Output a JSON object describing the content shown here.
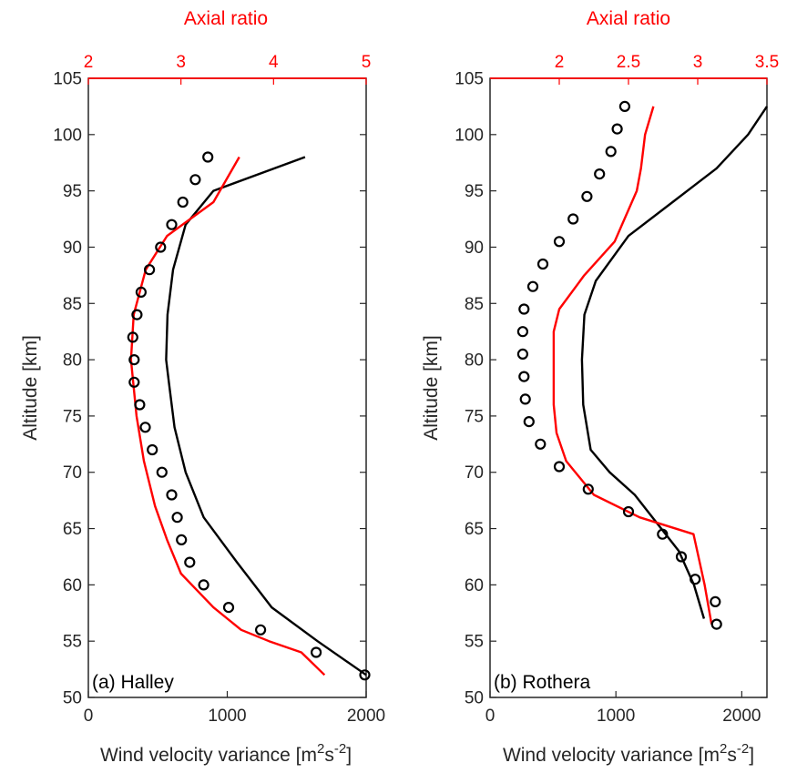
{
  "chart_data": [
    {
      "type": "line",
      "panel_label": "(a) Halley",
      "xlabel_main": "Wind velocity variance [m",
      "xlabel_sup1": "2",
      "xlabel_mid": "s",
      "xlabel_sup2": "-2",
      "xlabel_end": "]",
      "xlabel_secondary": "Axial ratio",
      "ylabel": "Altitude [km]",
      "xlim": [
        0,
        2000
      ],
      "x2lim": [
        2,
        5
      ],
      "ylim": [
        50,
        105
      ],
      "xticks": [
        0,
        1000,
        2000
      ],
      "x2ticks": [
        2,
        3,
        4,
        5
      ],
      "yticks": [
        50,
        55,
        60,
        65,
        70,
        75,
        80,
        85,
        90,
        95,
        100,
        105
      ],
      "series": [
        {
          "axis": "bottom",
          "style": "line",
          "color": "#000000",
          "points": [
            [
              2000,
              52
            ],
            [
              1650,
              55
            ],
            [
              1320,
              58
            ],
            [
              1070,
              62
            ],
            [
              830,
              66
            ],
            [
              700,
              70
            ],
            [
              620,
              74
            ],
            [
              580,
              78
            ],
            [
              560,
              80
            ],
            [
              570,
              84
            ],
            [
              610,
              88
            ],
            [
              700,
              92
            ],
            [
              900,
              95
            ],
            [
              1560,
              98
            ]
          ]
        },
        {
          "axis": "top",
          "style": "line",
          "color": "#ff0000",
          "points": [
            [
              4.55,
              52
            ],
            [
              4.3,
              54
            ],
            [
              3.95,
              55
            ],
            [
              3.65,
              56
            ],
            [
              3.35,
              58
            ],
            [
              3.0,
              61
            ],
            [
              2.85,
              64
            ],
            [
              2.72,
              67
            ],
            [
              2.6,
              71
            ],
            [
              2.52,
              75
            ],
            [
              2.46,
              80
            ],
            [
              2.49,
              84
            ],
            [
              2.62,
              88
            ],
            [
              2.85,
              91
            ],
            [
              3.35,
              94
            ],
            [
              3.63,
              98
            ]
          ]
        },
        {
          "axis": "bottom",
          "style": "markers",
          "color": "#000000",
          "points": [
            [
              860,
              98
            ],
            [
              770,
              96
            ],
            [
              680,
              94
            ],
            [
              600,
              92
            ],
            [
              520,
              90
            ],
            [
              440,
              88
            ],
            [
              380,
              86
            ],
            [
              350,
              84
            ],
            [
              320,
              82
            ],
            [
              330,
              80
            ],
            [
              330,
              78
            ],
            [
              370,
              76
            ],
            [
              410,
              74
            ],
            [
              460,
              72
            ],
            [
              530,
              70
            ],
            [
              600,
              68
            ],
            [
              640,
              66
            ],
            [
              670,
              64
            ],
            [
              730,
              62
            ],
            [
              830,
              60
            ],
            [
              1010,
              58
            ],
            [
              1240,
              56
            ],
            [
              1640,
              54
            ],
            [
              1990,
              52
            ]
          ]
        }
      ]
    },
    {
      "type": "line",
      "panel_label": "(b) Rothera",
      "xlabel_main": "Wind velocity variance [m",
      "xlabel_sup1": "2",
      "xlabel_mid": "s",
      "xlabel_sup2": "-2",
      "xlabel_end": "]",
      "xlabel_secondary": "Axial ratio",
      "ylabel": "Altitude [km]",
      "xlim": [
        0,
        2200
      ],
      "x2lim": [
        1.5,
        3.5
      ],
      "ylim": [
        50,
        105
      ],
      "xticks": [
        0,
        1000,
        2000
      ],
      "x2ticks": [
        2,
        2.5,
        3,
        3.5
      ],
      "yticks": [
        50,
        55,
        60,
        65,
        70,
        75,
        80,
        85,
        90,
        95,
        100,
        105
      ],
      "series": [
        {
          "axis": "bottom",
          "style": "line",
          "color": "#000000",
          "points": [
            [
              1700,
              57
            ],
            [
              1620,
              60
            ],
            [
              1500,
              63
            ],
            [
              1360,
              65
            ],
            [
              1150,
              68
            ],
            [
              950,
              70
            ],
            [
              800,
              72
            ],
            [
              740,
              76
            ],
            [
              730,
              80
            ],
            [
              750,
              84
            ],
            [
              840,
              87
            ],
            [
              1100,
              91
            ],
            [
              1450,
              94
            ],
            [
              1800,
              97
            ],
            [
              2050,
              100
            ],
            [
              2200,
              102.5
            ]
          ]
        },
        {
          "axis": "top",
          "style": "line",
          "color": "#ff0000",
          "points": [
            [
              3.1,
              56.5
            ],
            [
              3.05,
              60
            ],
            [
              2.97,
              64.5
            ],
            [
              2.58,
              66
            ],
            [
              2.25,
              68
            ],
            [
              2.05,
              71
            ],
            [
              1.98,
              73.5
            ],
            [
              1.96,
              76
            ],
            [
              1.96,
              80
            ],
            [
              1.96,
              82.5
            ],
            [
              2.0,
              84.5
            ],
            [
              2.18,
              87.5
            ],
            [
              2.4,
              90.5
            ],
            [
              2.56,
              95
            ],
            [
              2.59,
              97
            ],
            [
              2.62,
              100
            ],
            [
              2.68,
              102.5
            ]
          ]
        },
        {
          "axis": "bottom",
          "style": "markers",
          "color": "#000000",
          "points": [
            [
              1070,
              102.5
            ],
            [
              1010,
              100.5
            ],
            [
              960,
              98.5
            ],
            [
              870,
              96.5
            ],
            [
              770,
              94.5
            ],
            [
              660,
              92.5
            ],
            [
              550,
              90.5
            ],
            [
              420,
              88.5
            ],
            [
              340,
              86.5
            ],
            [
              270,
              84.5
            ],
            [
              260,
              82.5
            ],
            [
              260,
              80.5
            ],
            [
              270,
              78.5
            ],
            [
              280,
              76.5
            ],
            [
              310,
              74.5
            ],
            [
              400,
              72.5
            ],
            [
              550,
              70.5
            ],
            [
              780,
              68.5
            ],
            [
              1100,
              66.5
            ],
            [
              1370,
              64.5
            ],
            [
              1520,
              62.5
            ],
            [
              1630,
              60.5
            ],
            [
              1790,
              58.5
            ],
            [
              1800,
              56.5
            ]
          ]
        }
      ]
    }
  ]
}
